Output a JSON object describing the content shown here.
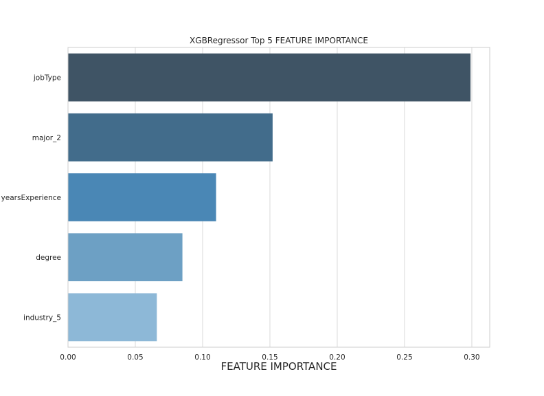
{
  "chart_data": {
    "type": "bar",
    "orientation": "horizontal",
    "title": "XGBRegressor Top 5 FEATURE IMPORTANCE",
    "xlabel": "FEATURE IMPORTANCE",
    "ylabel": "",
    "categories": [
      "jobType",
      "major_2",
      "yearsExperience",
      "degree",
      "industry_5"
    ],
    "values": [
      0.299,
      0.152,
      0.11,
      0.085,
      0.066
    ],
    "colors": [
      "#3f5465",
      "#426c8b",
      "#4a87b5",
      "#6da0c4",
      "#8db8d7"
    ],
    "xlim": [
      0,
      0.3133
    ],
    "xticks": [
      "0.00",
      "0.05",
      "0.10",
      "0.15",
      "0.20",
      "0.25",
      "0.30"
    ],
    "grid": true,
    "legend": "none"
  }
}
